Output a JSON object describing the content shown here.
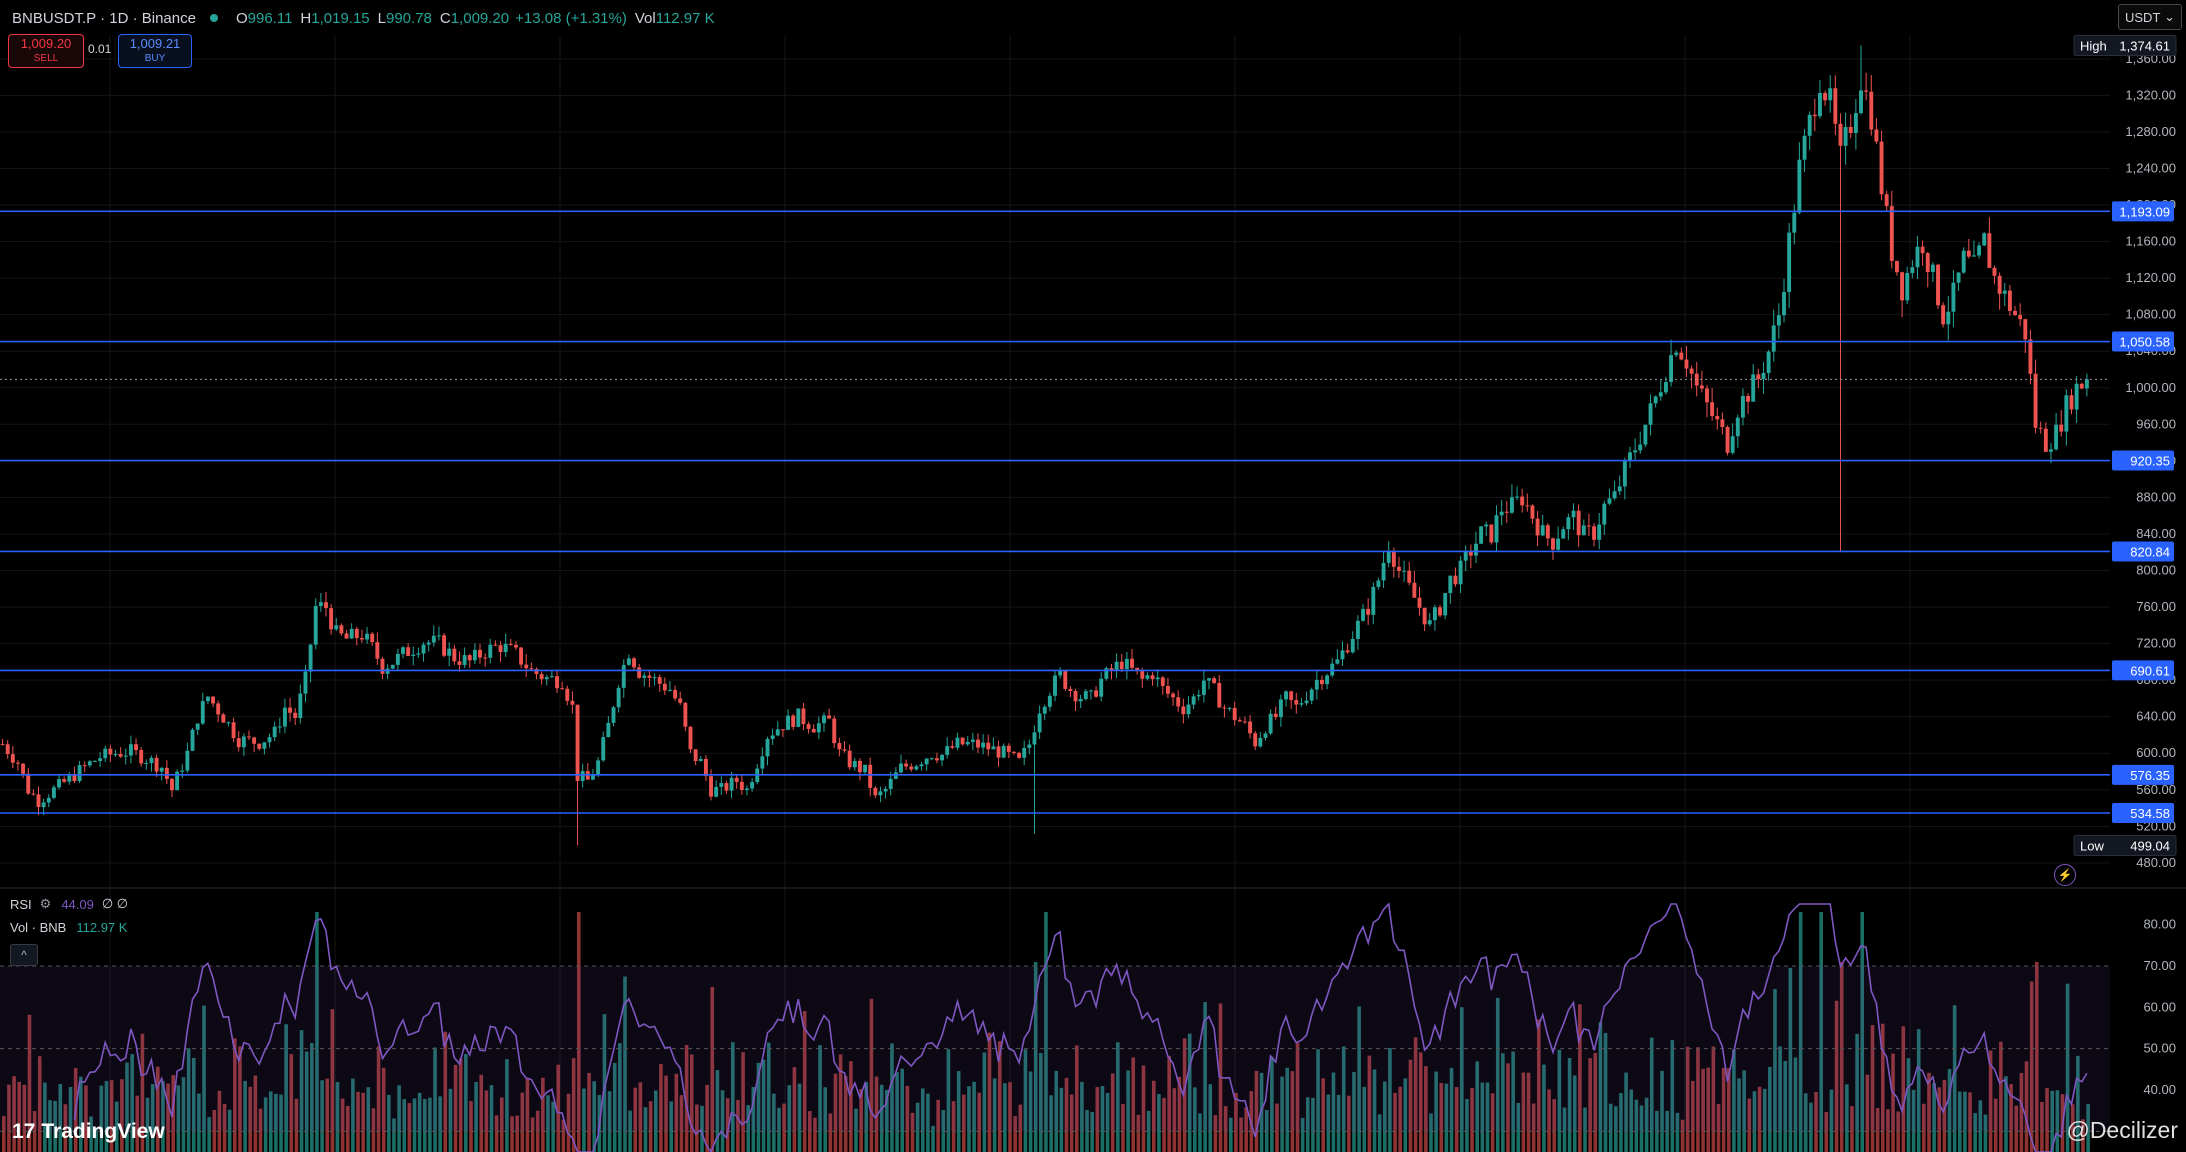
{
  "header": {
    "symbol": "BNBUSDT.P · 1D · Binance",
    "open_label": "O",
    "open": "996.11",
    "high_label": "H",
    "high": "1,019.15",
    "low_label": "L",
    "low": "990.78",
    "close_label": "C",
    "close": "1,009.20",
    "change": "+13.08 (+1.31%)",
    "vol_label": "Vol",
    "vol": "112.97 K"
  },
  "trade": {
    "sell_price": "1,009.20",
    "sell_label": "SELL",
    "spread": "0.01",
    "buy_price": "1,009.21",
    "buy_label": "BUY"
  },
  "currency": "USDT",
  "indicators": {
    "rsi_label": "RSI",
    "rsi_value": "44.09",
    "rsi_extra": "∅ ∅",
    "vol_label": "Vol · BNB",
    "vol_value": "112.97 K"
  },
  "branding": {
    "logo": "TradingView",
    "watermark": "@Decilizer"
  },
  "colors": {
    "up": "#26a69a",
    "down": "#ef5350",
    "level": "#2962ff",
    "rsi": "#7e57c2",
    "bg": "#000000"
  },
  "chart_data": [
    {
      "type": "candlestick",
      "title": "BNBUSDT.P · 1D · Binance",
      "price_axis": {
        "ylim": [
          470,
          1385
        ],
        "ticks": [
          480,
          520,
          560,
          600,
          640,
          680,
          720,
          760,
          800,
          840,
          880,
          920,
          960,
          1000,
          1040,
          1080,
          1120,
          1160,
          1200,
          1240,
          1280,
          1320,
          1360
        ],
        "tick_labels": [
          "480.00",
          "520.00",
          "560.00",
          "600.00",
          "640.00",
          "680.00",
          "720.00",
          "760.00",
          "800.00",
          "840.00",
          "880.00",
          "920.00",
          "960.00",
          "1,000.00",
          "1,040.00",
          "1,080.00",
          "1,120.00",
          "1,160.00",
          "1,200.00",
          "1,240.00",
          "1,280.00",
          "1,320.00",
          "1,360.00"
        ]
      },
      "horizontal_levels": [
        {
          "value": 1193.09,
          "label": "1,193.09"
        },
        {
          "value": 1050.58,
          "label": "1,050.58"
        },
        {
          "value": 920.35,
          "label": "920.35"
        },
        {
          "value": 820.84,
          "label": "820.84"
        },
        {
          "value": 690.61,
          "label": "690.61"
        },
        {
          "value": 576.35,
          "label": "576.35"
        },
        {
          "value": 534.58,
          "label": "534.58"
        }
      ],
      "high": {
        "label": "High",
        "value": 1374.61,
        "text": "1,374.61"
      },
      "low": {
        "label": "Low",
        "value": 499.04,
        "text": "499.04"
      },
      "current_price": 1009.2,
      "close_path": [
        [
          0,
          610
        ],
        [
          3,
          590
        ],
        [
          5,
          560
        ],
        [
          7,
          548
        ],
        [
          10,
          560
        ],
        [
          13,
          572
        ],
        [
          16,
          585
        ],
        [
          19,
          596
        ],
        [
          22,
          600
        ],
        [
          25,
          602
        ],
        [
          28,
          594
        ],
        [
          31,
          585
        ],
        [
          33,
          560
        ],
        [
          36,
          600
        ],
        [
          38,
          640
        ],
        [
          40,
          662
        ],
        [
          43,
          640
        ],
        [
          46,
          615
        ],
        [
          50,
          612
        ],
        [
          53,
          622
        ],
        [
          55,
          650
        ],
        [
          57,
          640
        ],
        [
          59,
          680
        ],
        [
          60,
          720
        ],
        [
          61,
          760
        ],
        [
          63,
          760
        ],
        [
          65,
          730
        ],
        [
          67,
          725
        ],
        [
          70,
          730
        ],
        [
          72,
          715
        ],
        [
          74,
          695
        ],
        [
          76,
          700
        ],
        [
          79,
          712
        ],
        [
          82,
          722
        ],
        [
          85,
          720
        ],
        [
          88,
          705
        ],
        [
          91,
          700
        ],
        [
          94,
          712
        ],
        [
          97,
          718
        ],
        [
          100,
          708
        ],
        [
          103,
          690
        ],
        [
          106,
          682
        ],
        [
          109,
          680
        ],
        [
          111,
          650
        ],
        [
          112,
          575
        ],
        [
          114,
          570
        ],
        [
          116,
          590
        ],
        [
          118,
          630
        ],
        [
          120,
          680
        ],
        [
          122,
          712
        ],
        [
          124,
          690
        ],
        [
          127,
          680
        ],
        [
          130,
          670
        ],
        [
          132,
          650
        ],
        [
          134,
          600
        ],
        [
          136,
          590
        ],
        [
          138,
          560
        ],
        [
          140,
          560
        ],
        [
          143,
          570
        ],
        [
          145,
          560
        ],
        [
          147,
          590
        ],
        [
          149,
          620
        ],
        [
          152,
          632
        ],
        [
          155,
          640
        ],
        [
          158,
          630
        ],
        [
          161,
          635
        ],
        [
          163,
          600
        ],
        [
          165,
          590
        ],
        [
          168,
          580
        ],
        [
          170,
          550
        ],
        [
          172,
          560
        ],
        [
          175,
          584
        ],
        [
          178,
          590
        ],
        [
          181,
          600
        ],
        [
          183,
          598
        ],
        [
          186,
          610
        ],
        [
          189,
          610
        ],
        [
          192,
          606
        ],
        [
          195,
          600
        ],
        [
          198,
          590
        ],
        [
          200,
          610
        ],
        [
          202,
          650
        ],
        [
          204,
          670
        ],
        [
          206,
          685
        ],
        [
          208,
          670
        ],
        [
          210,
          662
        ],
        [
          212,
          660
        ],
        [
          214,
          680
        ],
        [
          216,
          690
        ],
        [
          218,
          700
        ],
        [
          220,
          690
        ],
        [
          222,
          680
        ],
        [
          224,
          688
        ],
        [
          226,
          670
        ],
        [
          228,
          660
        ],
        [
          230,
          650
        ],
        [
          232,
          660
        ],
        [
          234,
          680
        ],
        [
          236,
          668
        ],
        [
          238,
          650
        ],
        [
          240,
          640
        ],
        [
          242,
          630
        ],
        [
          244,
          612
        ],
        [
          246,
          630
        ],
        [
          248,
          640
        ],
        [
          250,
          660
        ],
        [
          252,
          650
        ],
        [
          254,
          665
        ],
        [
          256,
          680
        ],
        [
          258,
          690
        ],
        [
          260,
          700
        ],
        [
          262,
          720
        ],
        [
          264,
          740
        ],
        [
          266,
          760
        ],
        [
          268,
          790
        ],
        [
          270,
          830
        ],
        [
          272,
          800
        ],
        [
          274,
          780
        ],
        [
          276,
          760
        ],
        [
          278,
          740
        ],
        [
          280,
          760
        ],
        [
          282,
          790
        ],
        [
          284,
          800
        ],
        [
          286,
          822
        ],
        [
          288,
          840
        ],
        [
          290,
          840
        ],
        [
          292,
          868
        ],
        [
          294,
          870
        ],
        [
          296,
          880
        ],
        [
          298,
          860
        ],
        [
          300,
          840
        ],
        [
          302,
          832
        ],
        [
          304,
          850
        ],
        [
          306,
          858
        ],
        [
          308,
          838
        ],
        [
          310,
          842
        ],
        [
          312,
          870
        ],
        [
          314,
          880
        ],
        [
          316,
          910
        ],
        [
          318,
          935
        ],
        [
          320,
          960
        ],
        [
          322,
          988
        ],
        [
          324,
          1020
        ],
        [
          326,
          1050
        ],
        [
          328,
          1030
        ],
        [
          330,
          1000
        ],
        [
          332,
          980
        ],
        [
          334,
          960
        ],
        [
          336,
          940
        ],
        [
          338,
          978
        ],
        [
          340,
          995
        ],
        [
          342,
          1010
        ],
        [
          344,
          1040
        ],
        [
          346,
          1080
        ],
        [
          348,
          1160
        ],
        [
          350,
          1240
        ],
        [
          352,
          1290
        ],
        [
          354,
          1340
        ],
        [
          356,
          1310
        ],
        [
          358,
          1250
        ],
        [
          360,
          1290
        ],
        [
          362,
          1340
        ],
        [
          364,
          1300
        ],
        [
          366,
          1220
        ],
        [
          368,
          1150
        ],
        [
          370,
          1110
        ],
        [
          372,
          1140
        ],
        [
          374,
          1160
        ],
        [
          376,
          1120
        ],
        [
          378,
          1080
        ],
        [
          380,
          1100
        ],
        [
          382,
          1140
        ],
        [
          384,
          1130
        ],
        [
          386,
          1160
        ],
        [
          388,
          1120
        ],
        [
          390,
          1100
        ],
        [
          392,
          1080
        ],
        [
          394,
          1060
        ],
        [
          396,
          960
        ],
        [
          398,
          940
        ],
        [
          400,
          950
        ],
        [
          402,
          980
        ],
        [
          404,
          1000
        ],
        [
          406,
          1009.2
        ]
      ],
      "num_candles": 407
    },
    {
      "type": "line",
      "name": "RSI",
      "ylim": [
        25,
        85
      ],
      "ticks": [
        40,
        50,
        60,
        70,
        80
      ],
      "tick_labels": [
        "40.00",
        "50.00",
        "60.00",
        "70.00",
        "80.00"
      ],
      "bands": [
        70,
        50,
        30
      ],
      "last_value": 44.09
    },
    {
      "type": "bar",
      "name": "Vol · BNB",
      "last_value": "112.97 K"
    }
  ]
}
